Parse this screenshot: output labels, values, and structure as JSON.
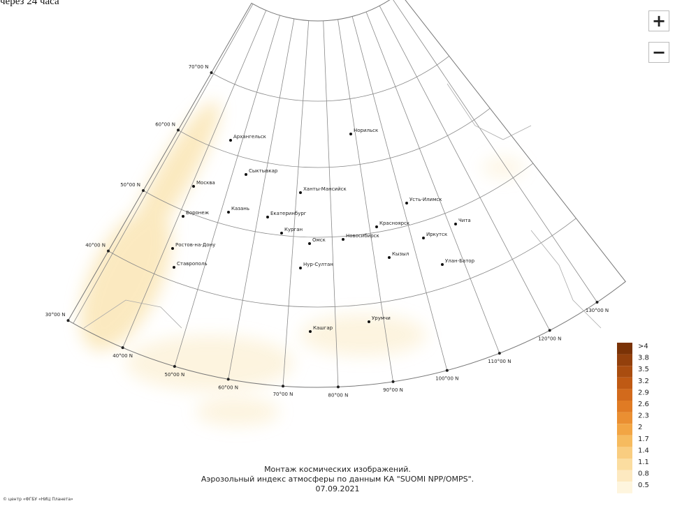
{
  "top_text": "через 24 часа",
  "zoom": {
    "zoom_in": "+",
    "zoom_out": "−"
  },
  "latitude_labels": [
    "70°00 N",
    "60°00 N",
    "50°00 N",
    "40°00 N",
    "30°00 N"
  ],
  "longitude_labels": [
    "40°00 N",
    "50°00 N",
    "60°00 N",
    "70°00 N",
    "80°00 N",
    "90°00 N",
    "100°00 N",
    "110°00 N",
    "120°00 N",
    "130°00 N"
  ],
  "cities": [
    "Норильск",
    "Архангельск",
    "Сыктывкар",
    "Москва",
    "Ханты-Мансийск",
    "Казань",
    "Воронеж",
    "Екатеринбург",
    "Курган",
    "Омск",
    "Новосибирск",
    "Красноярск",
    "Усть-Илимск",
    "Иркутск",
    "Чита",
    "Ростов-на-Дону",
    "Ставрополь",
    "Нур-Султан",
    "Кызыл",
    "Улан-Батор",
    "Урумчи",
    "Кашгар"
  ],
  "legend": [
    {
      "label": ">4",
      "color": "#7a3206"
    },
    {
      "label": "3.8",
      "color": "#93400c"
    },
    {
      "label": "3.5",
      "color": "#a94d10"
    },
    {
      "label": "3.2",
      "color": "#bf5a14"
    },
    {
      "label": "2.9",
      "color": "#d26a1c"
    },
    {
      "label": "2.6",
      "color": "#e07b24"
    },
    {
      "label": "2.3",
      "color": "#ea8f32"
    },
    {
      "label": "2",
      "color": "#f2a544"
    },
    {
      "label": "1.7",
      "color": "#f6bb5f"
    },
    {
      "label": "1.4",
      "color": "#f9cd80"
    },
    {
      "label": "1.1",
      "color": "#fbdda0"
    },
    {
      "label": "0.8",
      "color": "#fde9c0"
    },
    {
      "label": "0.5",
      "color": "#fef5de"
    }
  ],
  "caption": [
    "Монтаж космических изображений.",
    "Аэрозольный индекс атмосферы по данным КА \"SUOMI NPP/OMPS\".",
    "07.09.2021"
  ],
  "credit": "© центр «ФГБУ «НИЦ Планета»"
}
